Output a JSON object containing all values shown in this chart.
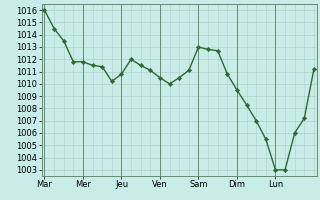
{
  "x_values": [
    0,
    1,
    2,
    3,
    4,
    5,
    6,
    7,
    8,
    9,
    10,
    11,
    12,
    13,
    14,
    15,
    16,
    17,
    18,
    19,
    20,
    21,
    22,
    23,
    24,
    25,
    26,
    27,
    28
  ],
  "y_values": [
    1016,
    1014.5,
    1013.5,
    1011.8,
    1011.8,
    1011.5,
    1011.4,
    1010.2,
    1010.8,
    1012.0,
    1011.5,
    1011.1,
    1010.5,
    1010.0,
    1010.5,
    1011.1,
    1013.0,
    1012.8,
    1012.7,
    1010.8,
    1009.5,
    1008.3,
    1007.0,
    1005.5,
    1003.0,
    1003.0,
    1006.0,
    1007.2,
    1011.2
  ],
  "major_xtick_positions": [
    0,
    4,
    8,
    12,
    16,
    20,
    24
  ],
  "major_xtick_labels": [
    "Mar",
    "Mer",
    "Jeu",
    "Ven",
    "Sam",
    "Dim",
    "Lun"
  ],
  "ylim": [
    1002.5,
    1016.5
  ],
  "yticks": [
    1003,
    1004,
    1005,
    1006,
    1007,
    1008,
    1009,
    1010,
    1011,
    1012,
    1013,
    1014,
    1015,
    1016
  ],
  "line_color": "#2d6a2d",
  "marker_color": "#2d6a2d",
  "bg_color": "#c8ece8",
  "grid_color": "#afd0cc",
  "spine_color": "#6a8c6a",
  "tick_label_fontsize": 6.0,
  "line_width": 1.0,
  "marker_size": 2.2,
  "xlim": [
    -0.3,
    28.3
  ]
}
